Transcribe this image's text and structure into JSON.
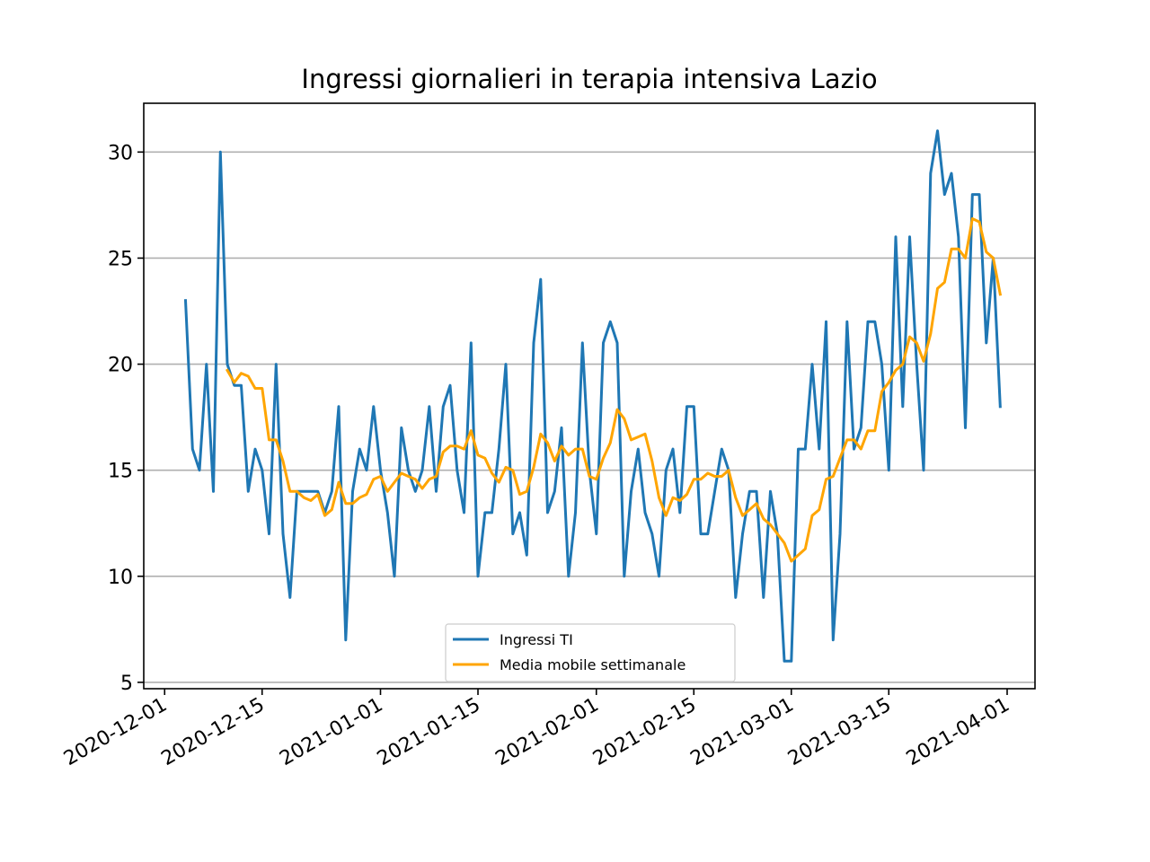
{
  "chart_data": {
    "type": "line",
    "title": "Ingressi giornalieri in terapia intensiva Lazio",
    "xlabel": "",
    "ylabel": "",
    "x_ticks": [
      "2020-12-01",
      "2020-12-15",
      "2021-01-01",
      "2021-01-15",
      "2021-02-01",
      "2021-02-15",
      "2021-03-01",
      "2021-03-15",
      "2021-04-01"
    ],
    "y_ticks": [
      5,
      10,
      15,
      20,
      25,
      30
    ],
    "xlim": [
      "2020-11-28",
      "2021-04-05"
    ],
    "ylim": [
      4.7,
      32.3
    ],
    "grid": "y-axis",
    "legend_position": "lower-center",
    "start_date": "2020-12-04",
    "series": [
      {
        "name": "Ingressi TI",
        "color": "#1f77b4",
        "values": [
          23,
          16,
          15,
          20,
          14,
          30,
          20,
          19,
          19,
          14,
          16,
          15,
          12,
          20,
          12,
          9,
          14,
          14,
          14,
          14,
          13,
          14,
          18,
          7,
          14,
          16,
          15,
          18,
          15,
          13,
          10,
          17,
          15,
          14,
          15,
          18,
          14,
          18,
          19,
          15,
          13,
          21,
          10,
          13,
          13,
          16,
          20,
          12,
          13,
          11,
          21,
          24,
          13,
          14,
          17,
          10,
          13,
          21,
          15,
          12,
          21,
          22,
          21,
          10,
          14,
          16,
          13,
          12,
          10,
          15,
          16,
          13,
          18,
          18,
          12,
          12,
          14,
          16,
          15,
          9,
          12,
          14,
          14,
          9,
          14,
          12,
          6,
          6,
          16,
          16,
          20,
          16,
          22,
          7,
          12,
          22,
          16,
          17,
          22,
          22,
          20,
          15,
          26,
          18,
          26,
          20,
          15,
          29,
          31,
          28,
          29,
          26,
          17,
          28,
          28,
          21,
          25,
          18
        ]
      },
      {
        "name": "Media mobile settimanale",
        "color": "#ffa500",
        "offset": 6,
        "values": [
          19.71,
          19.14,
          19.57,
          19.43,
          18.86,
          18.86,
          16.43,
          16.43,
          15.43,
          14.0,
          14.0,
          13.71,
          13.57,
          13.86,
          12.86,
          13.14,
          14.43,
          13.43,
          13.43,
          13.71,
          13.86,
          14.57,
          14.71,
          14.0,
          14.43,
          14.86,
          14.71,
          14.57,
          14.14,
          14.57,
          14.71,
          15.86,
          16.14,
          16.14,
          16.0,
          16.86,
          15.71,
          15.57,
          14.86,
          14.43,
          15.14,
          15.0,
          13.86,
          14.0,
          15.14,
          16.71,
          16.29,
          15.43,
          16.14,
          15.71,
          16.0,
          16.0,
          14.71,
          14.57,
          15.57,
          16.29,
          17.86,
          17.43,
          16.43,
          16.57,
          16.71,
          15.43,
          13.71,
          12.86,
          13.71,
          13.57,
          13.86,
          14.57,
          14.57,
          14.86,
          14.71,
          14.71,
          15.0,
          13.71,
          12.86,
          13.14,
          13.43,
          12.71,
          12.43,
          12.0,
          11.57,
          10.71,
          11.0,
          11.29,
          12.86,
          13.14,
          14.57,
          14.71,
          15.57,
          16.43,
          16.43,
          16.0,
          16.86,
          16.86,
          18.71,
          19.14,
          19.71,
          20.0,
          21.29,
          21.0,
          20.14,
          21.43,
          23.57,
          23.86,
          25.43,
          25.43,
          25.0,
          26.86,
          26.71,
          25.29,
          25.0,
          23.29
        ]
      }
    ]
  }
}
